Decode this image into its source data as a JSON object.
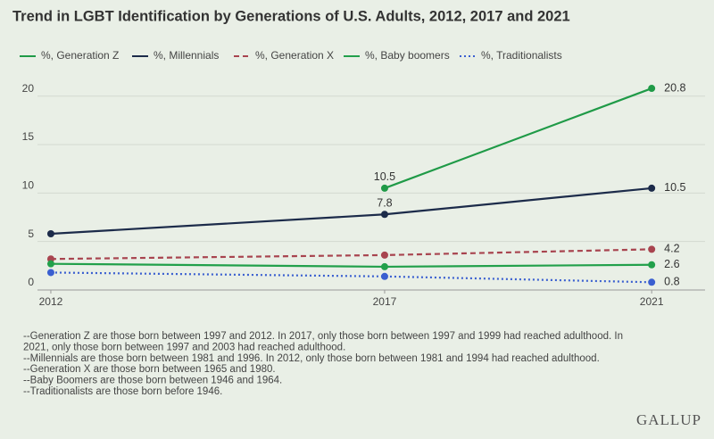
{
  "chart_data": {
    "type": "line",
    "title": "Trend in LGBT Identification by Generations of U.S. Adults, 2012, 2017 and 2021",
    "x": [
      2012,
      2017,
      2021
    ],
    "xlim": [
      2011.8,
      2021.8
    ],
    "xticks": [
      2012,
      2017,
      2021
    ],
    "ylim": [
      0,
      22
    ],
    "yticks": [
      0,
      5,
      10,
      15,
      20
    ],
    "grid": true,
    "legend": "top",
    "series": [
      {
        "name": "%, Generation Z",
        "color": "#1f9a47",
        "dash": "solid",
        "values": [
          null,
          10.5,
          20.8
        ],
        "value_labels": [
          null,
          "10.5",
          "20.8"
        ]
      },
      {
        "name": "%, Millennials",
        "color": "#1c2b4a",
        "dash": "solid",
        "values": [
          5.8,
          7.8,
          10.5
        ],
        "value_labels": [
          null,
          "7.8",
          "10.5"
        ]
      },
      {
        "name": "%, Generation X",
        "color": "#a8444f",
        "dash": "dashed",
        "values": [
          3.2,
          3.6,
          4.2
        ],
        "value_labels": [
          null,
          null,
          "4.2"
        ]
      },
      {
        "name": "%, Baby boomers",
        "color": "#22a04b",
        "dash": "solid",
        "values": [
          2.7,
          2.4,
          2.6
        ],
        "value_labels": [
          null,
          null,
          "2.6"
        ]
      },
      {
        "name": "%, Traditionalists",
        "color": "#3a5fd0",
        "dash": "dotted",
        "values": [
          1.8,
          1.4,
          0.8
        ],
        "value_labels": [
          null,
          null,
          "0.8"
        ]
      }
    ],
    "notes": [
      "--Generation Z are those born between 1997 and 2012. In 2017, only those born between 1997 and 1999 had reached adulthood. In",
      "2021, only those born between 1997 and 2003 had reached adulthood.",
      "--Millennials are those born between 1981 and 1996. In 2012, only those born between 1981 and 1994 had reached adulthood.",
      "--Generation X are those born between 1965 and 1980.",
      "--Baby Boomers are those born between 1946 and 1964.",
      "--Traditionalists are those born before 1946."
    ],
    "source": "GALLUP"
  }
}
